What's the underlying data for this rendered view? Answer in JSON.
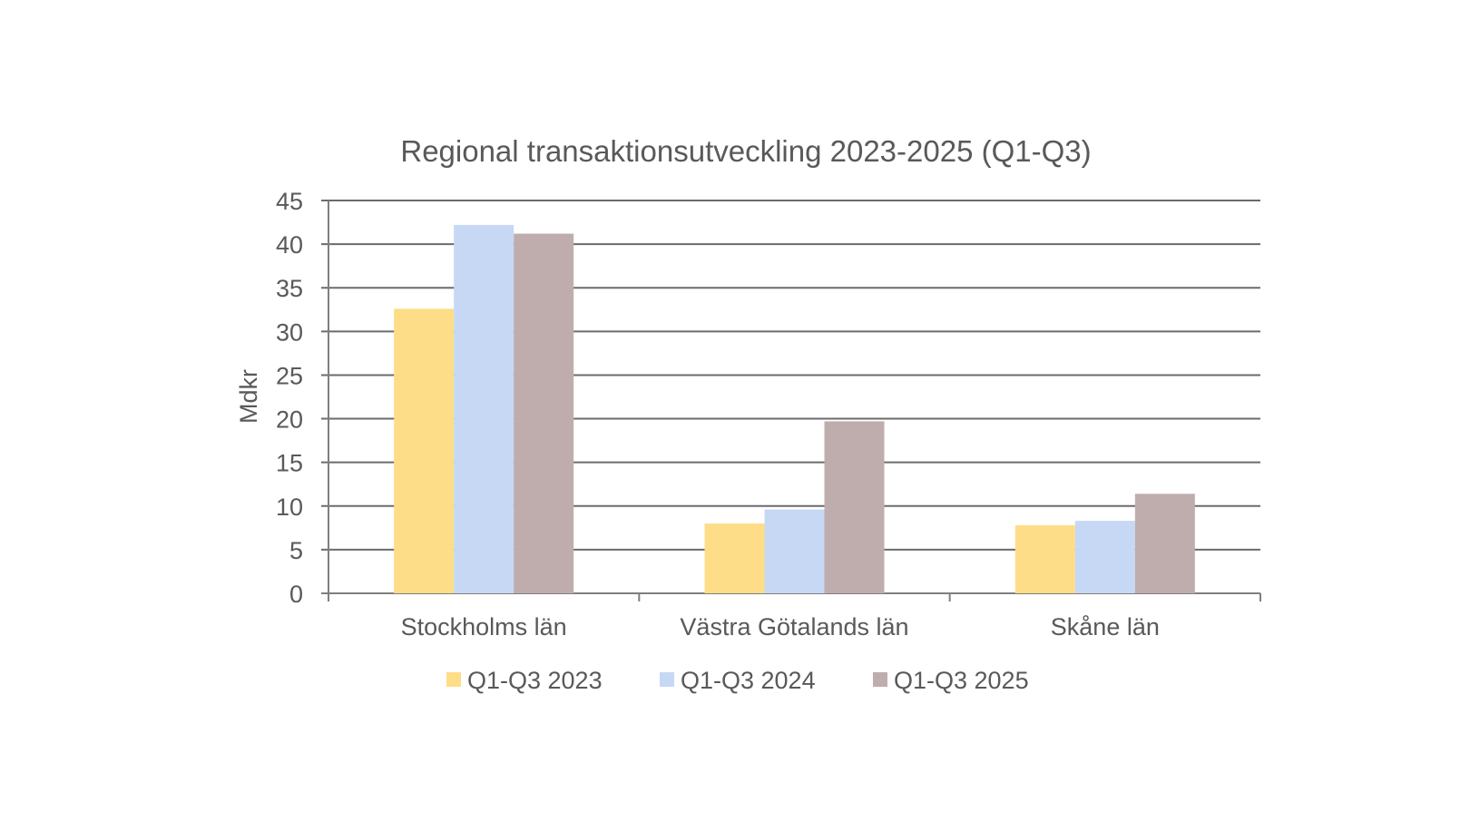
{
  "chart_data": {
    "type": "bar",
    "title": "Regional transaktionsutveckling 2023-2025 (Q1-Q3)",
    "xlabel": "",
    "ylabel": "Mdkr",
    "ylim": [
      0,
      45
    ],
    "yticks": [
      0,
      5,
      10,
      15,
      20,
      25,
      30,
      35,
      40,
      45
    ],
    "grid": true,
    "legend_position": "bottom",
    "categories": [
      "Stockholms län",
      "Västra Götalands län",
      "Skåne län"
    ],
    "series": [
      {
        "name": "Q1-Q3 2023",
        "color": "#FEDD88",
        "values": [
          32.6,
          8.0,
          7.8
        ]
      },
      {
        "name": "Q1-Q3 2024",
        "color": "#C6D8F4",
        "values": [
          42.2,
          9.6,
          8.3
        ]
      },
      {
        "name": "Q1-Q3 2025",
        "color": "#BFADAD",
        "values": [
          41.2,
          19.7,
          11.4
        ]
      }
    ]
  }
}
